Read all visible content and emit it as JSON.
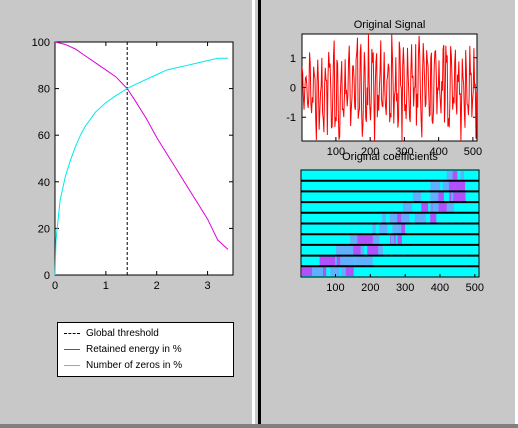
{
  "colors": {
    "threshold": "#000000",
    "energy": "#dd00dd",
    "zeros": "#00e8e8",
    "signal": "#ff0000",
    "coeff_bg": "#00ffff",
    "coeff_hi": "#b050ff",
    "coeff_mid": "#60b0ff"
  },
  "left_chart": {
    "chart_data": {
      "type": "line",
      "xlim": [
        0,
        3.5
      ],
      "ylim": [
        0,
        100
      ],
      "xticks": [
        "0",
        "1",
        "2",
        "3"
      ],
      "yticks": [
        "0",
        "20",
        "40",
        "60",
        "80",
        "100"
      ],
      "threshold_x": 1.42,
      "series": [
        {
          "name": "Retained energy in %",
          "x": [
            0,
            0.2,
            0.4,
            0.6,
            0.8,
            1.0,
            1.2,
            1.42,
            1.6,
            1.8,
            2.0,
            2.2,
            2.4,
            2.6,
            2.8,
            3.0,
            3.2,
            3.4
          ],
          "y": [
            100,
            99,
            97,
            94,
            91,
            88,
            85,
            80,
            74,
            67,
            59,
            52,
            45,
            38,
            31,
            24,
            15,
            11
          ]
        },
        {
          "name": "Number of zeros in %",
          "x": [
            0,
            0.02,
            0.1,
            0.2,
            0.3,
            0.4,
            0.5,
            0.6,
            0.8,
            1.0,
            1.2,
            1.42,
            1.6,
            1.8,
            2.0,
            2.2,
            2.4,
            2.6,
            2.8,
            3.0,
            3.2,
            3.4
          ],
          "y": [
            0,
            15,
            32,
            42,
            49,
            55,
            60,
            64,
            70,
            74,
            77,
            80,
            82,
            84,
            86,
            88,
            89,
            90,
            91,
            92,
            93,
            93
          ]
        }
      ]
    },
    "legend": [
      {
        "label": "Global threshold",
        "style": "dashed",
        "color": "#000000"
      },
      {
        "label": "Retained energy in %",
        "style": "solid",
        "color": "#dd00dd"
      },
      {
        "label": "Number of zeros in %",
        "style": "solid",
        "color": "#00e8e8"
      }
    ]
  },
  "signal_chart": {
    "title": "Original Signal",
    "chart_data": {
      "type": "line",
      "xlim": [
        1,
        512
      ],
      "ylim": [
        -1.8,
        1.8
      ],
      "xticks": [
        "100",
        "200",
        "300",
        "400",
        "500"
      ],
      "yticks": [
        "1",
        "0",
        "-1"
      ],
      "series": [
        {
          "y_pattern": "noisy_oscillation",
          "n": 512
        }
      ]
    }
  },
  "coeff_chart": {
    "title": "Original coefficients",
    "chart_data": {
      "type": "heatmap",
      "xlim": [
        1,
        512
      ],
      "rows": 10,
      "xticks": [
        "100",
        "200",
        "300",
        "400",
        "500"
      ]
    }
  }
}
